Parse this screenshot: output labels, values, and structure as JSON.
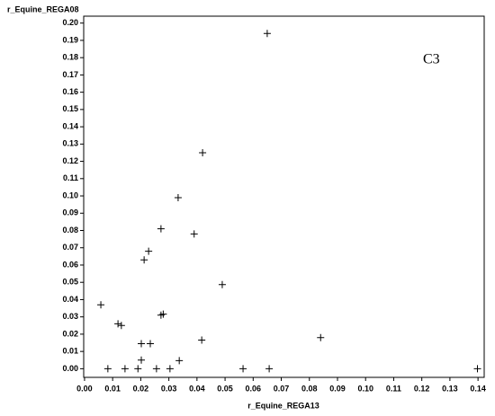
{
  "chart_data": {
    "type": "scatter",
    "xlabel": "r_Equine_REGA13",
    "ylabel": "r_Equine_REGA08",
    "annotation": "C3",
    "color": "#000000",
    "marker": "plus",
    "xlim": [
      -0.0003,
      0.1422
    ],
    "ylim": [
      -0.005,
      0.204
    ],
    "xticks": [
      {
        "value": 0,
        "label": "0.00"
      },
      {
        "value": 0.01,
        "label": "0.01"
      },
      {
        "value": 0.02,
        "label": "0.02"
      },
      {
        "value": 0.03,
        "label": "0.03"
      },
      {
        "value": 0.04,
        "label": "0.04"
      },
      {
        "value": 0.05,
        "label": "0.05"
      },
      {
        "value": 0.06,
        "label": "0.06"
      },
      {
        "value": 0.07,
        "label": "0.07"
      },
      {
        "value": 0.08,
        "label": "0.08"
      },
      {
        "value": 0.09,
        "label": "0.09"
      },
      {
        "value": 0.1,
        "label": "0.10"
      },
      {
        "value": 0.11,
        "label": "0.11"
      },
      {
        "value": 0.12,
        "label": "0.12"
      },
      {
        "value": 0.13,
        "label": "0.13"
      },
      {
        "value": 0.14,
        "label": "0.14"
      }
    ],
    "yticks": [
      {
        "value": 0,
        "label": "0.00"
      },
      {
        "value": 0.01,
        "label": "0.01"
      },
      {
        "value": 0.02,
        "label": "0.02"
      },
      {
        "value": 0.03,
        "label": "0.03"
      },
      {
        "value": 0.04,
        "label": "0.04"
      },
      {
        "value": 0.05,
        "label": "0.05"
      },
      {
        "value": 0.06,
        "label": "0.06"
      },
      {
        "value": 0.07,
        "label": "0.07"
      },
      {
        "value": 0.08,
        "label": "0.08"
      },
      {
        "value": 0.09,
        "label": "0.09"
      },
      {
        "value": 0.1,
        "label": "0.10"
      },
      {
        "value": 0.11,
        "label": "0.11"
      },
      {
        "value": 0.12,
        "label": "0.12"
      },
      {
        "value": 0.13,
        "label": "0.13"
      },
      {
        "value": 0.14,
        "label": "0.14"
      },
      {
        "value": 0.15,
        "label": "0.15"
      },
      {
        "value": 0.16,
        "label": "0.16"
      },
      {
        "value": 0.17,
        "label": "0.17"
      },
      {
        "value": 0.18,
        "label": "0.18"
      },
      {
        "value": 0.19,
        "label": "0.19"
      },
      {
        "value": 0.2,
        "label": "0.20"
      }
    ],
    "x": [
      0.065,
      0.042,
      0.0333,
      0.0272,
      0.039,
      0.0228,
      0.0212,
      0.049,
      0.0058,
      0.0119,
      0.0131,
      0.028,
      0.0272,
      0.0202,
      0.0234,
      0.0417,
      0.084,
      0.0202,
      0.0337,
      0.0083,
      0.0144,
      0.019,
      0.0256,
      0.0304,
      0.0564,
      0.0657,
      0.1398
    ],
    "y": [
      0.194,
      0.125,
      0.099,
      0.081,
      0.078,
      0.068,
      0.063,
      0.0487,
      0.037,
      0.026,
      0.025,
      0.0316,
      0.031,
      0.0145,
      0.0145,
      0.0166,
      0.018,
      0.005,
      0.0047,
      0,
      0,
      0,
      0,
      0,
      0,
      0,
      0
    ]
  }
}
